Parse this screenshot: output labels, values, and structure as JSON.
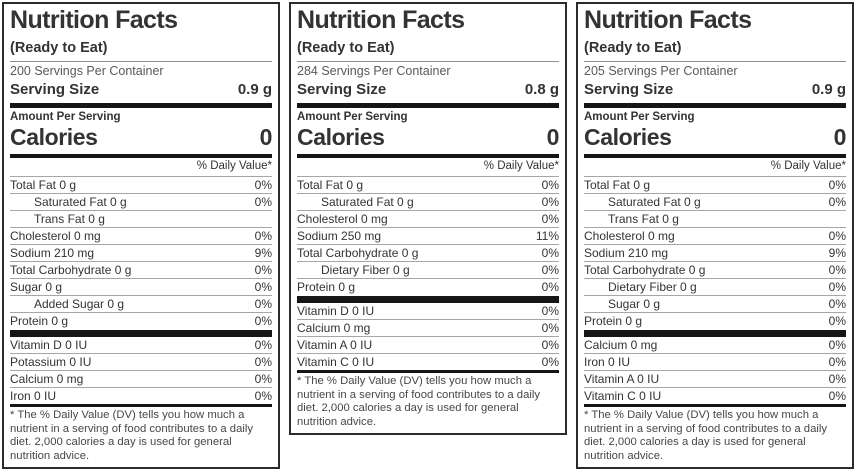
{
  "colors": {
    "border": "#2b2b2b",
    "text": "#333333",
    "muted_text": "#595959",
    "thin_line": "#a6a6a6",
    "thick_bar": "#161616",
    "background": "#ffffff"
  },
  "labels": [
    {
      "title": "Nutrition Facts",
      "subtitle": "(Ready to Eat)",
      "servings": "200 Servings Per Container",
      "serving_size_label": "Serving Size",
      "serving_size_value": "0.9 g",
      "amount_per_serving": "Amount Per Serving",
      "calories_label": "Calories",
      "calories_value": "0",
      "daily_value_header": "% Daily Value*",
      "rows": [
        {
          "name": "Total Fat 0 g",
          "dv": "0%",
          "indent": 0
        },
        {
          "name": "Saturated Fat 0 g",
          "dv": "0%",
          "indent": 1
        },
        {
          "name": "Trans Fat 0 g",
          "dv": "",
          "indent": 1
        },
        {
          "name": "Cholesterol 0 mg",
          "dv": "0%",
          "indent": 0
        },
        {
          "name": "Sodium 210 mg",
          "dv": "9%",
          "indent": 0
        },
        {
          "name": "Total Carbohydrate 0 g",
          "dv": "0%",
          "indent": 0
        },
        {
          "name": "Sugar 0 g",
          "dv": "0%",
          "indent": 0
        },
        {
          "name": "Added Sugar 0 g",
          "dv": "0%",
          "indent": 1
        },
        {
          "name": "Protein 0 g",
          "dv": "0%",
          "indent": 0
        }
      ],
      "vitamins": [
        {
          "name": "Vitamin D 0 IU",
          "dv": "0%",
          "indent": 0
        },
        {
          "name": "Potassium 0 IU",
          "dv": "0%",
          "indent": 0
        },
        {
          "name": "Calcium 0 mg",
          "dv": "0%",
          "indent": 0
        },
        {
          "name": "Iron 0 IU",
          "dv": "0%",
          "indent": 0
        }
      ],
      "footnote": "* The % Daily Value (DV) tells you how much a nutrient in a serving of food contributes to a daily diet. 2,000 calories a day is used for general nutrition advice."
    },
    {
      "title": "Nutrition Facts",
      "subtitle": "(Ready to Eat)",
      "servings": "284 Servings Per Container",
      "serving_size_label": "Serving Size",
      "serving_size_value": "0.8 g",
      "amount_per_serving": "Amount Per Serving",
      "calories_label": "Calories",
      "calories_value": "0",
      "daily_value_header": "% Daily Value*",
      "rows": [
        {
          "name": "Total Fat 0 g",
          "dv": "0%",
          "indent": 0
        },
        {
          "name": "Saturated Fat 0 g",
          "dv": "0%",
          "indent": 1
        },
        {
          "name": "Cholesterol 0 mg",
          "dv": "0%",
          "indent": 0
        },
        {
          "name": "Sodium 250 mg",
          "dv": "11%",
          "indent": 0
        },
        {
          "name": "Total Carbohydrate 0 g",
          "dv": "0%",
          "indent": 0
        },
        {
          "name": "Dietary Fiber 0 g",
          "dv": "0%",
          "indent": 1
        },
        {
          "name": "Protein 0 g",
          "dv": "0%",
          "indent": 0
        }
      ],
      "vitamins": [
        {
          "name": "Vitamin D 0 IU",
          "dv": "0%",
          "indent": 0
        },
        {
          "name": "Calcium 0 mg",
          "dv": "0%",
          "indent": 0
        },
        {
          "name": "Vitamin A 0 IU",
          "dv": "0%",
          "indent": 0
        },
        {
          "name": "Vitamin C 0 IU",
          "dv": "0%",
          "indent": 0
        }
      ],
      "footnote": "* The % Daily Value (DV) tells you how much a nutrient in a serving of food contributes to a daily diet. 2,000 calories a day is used for general nutrition advice."
    },
    {
      "title": "Nutrition Facts",
      "subtitle": "(Ready to Eat)",
      "servings": "205 Servings Per Container",
      "serving_size_label": "Serving Size",
      "serving_size_value": "0.9 g",
      "amount_per_serving": "Amount Per Serving",
      "calories_label": "Calories",
      "calories_value": "0",
      "daily_value_header": "% Daily Value*",
      "rows": [
        {
          "name": "Total Fat 0 g",
          "dv": "0%",
          "indent": 0
        },
        {
          "name": "Saturated Fat 0 g",
          "dv": "0%",
          "indent": 1
        },
        {
          "name": "Trans Fat 0 g",
          "dv": "",
          "indent": 1
        },
        {
          "name": "Cholesterol 0 mg",
          "dv": "0%",
          "indent": 0
        },
        {
          "name": "Sodium 210 mg",
          "dv": "9%",
          "indent": 0
        },
        {
          "name": "Total Carbohydrate 0 g",
          "dv": "0%",
          "indent": 0
        },
        {
          "name": "Dietary Fiber 0 g",
          "dv": "0%",
          "indent": 1
        },
        {
          "name": "Sugar 0 g",
          "dv": "0%",
          "indent": 1
        },
        {
          "name": "Protein 0 g",
          "dv": "0%",
          "indent": 0
        }
      ],
      "vitamins": [
        {
          "name": "Calcium 0 mg",
          "dv": "0%",
          "indent": 0
        },
        {
          "name": "Iron 0 IU",
          "dv": "0%",
          "indent": 0
        },
        {
          "name": "Vitamin A 0 IU",
          "dv": "0%",
          "indent": 0
        },
        {
          "name": "Vitamin C 0 IU",
          "dv": "0%",
          "indent": 0
        }
      ],
      "footnote": "* The % Daily Value (DV) tells you how much a nutrient in a serving of food contributes to a daily diet. 2,000 calories a day is used for general nutrition advice."
    }
  ]
}
